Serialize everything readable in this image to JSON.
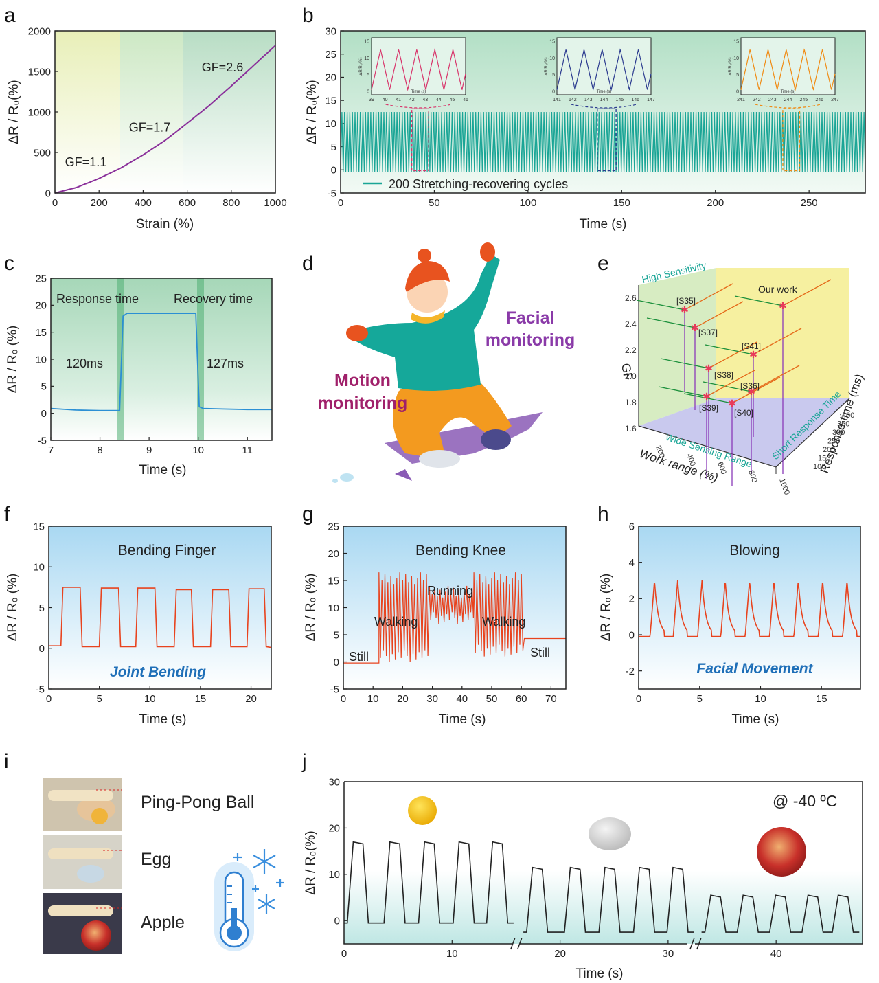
{
  "panel_labels": [
    "a",
    "b",
    "c",
    "d",
    "e",
    "f",
    "g",
    "h",
    "i",
    "j"
  ],
  "colors": {
    "purple": "#8a2f9a",
    "teal": "#1aa596",
    "blue": "#2b8fd4",
    "red": "#e8431e",
    "black": "#222222",
    "pink": "#d8336a",
    "navy": "#2b3a8f",
    "orange": "#f08a12"
  },
  "panel_a": {
    "ylabel": "ΔR / R₀(%)",
    "xlabel": "Strain (%)",
    "annotations": [
      "GF=1.1",
      "GF=1.7",
      "GF=2.6"
    ]
  },
  "panel_b": {
    "ylabel": "ΔR / R₀(%)",
    "xlabel": "Time (s)",
    "legend": "200 Stretching-recovering cycles"
  },
  "panel_c": {
    "ylabel": "ΔR / R₀ (%)",
    "xlabel": "Time (s)",
    "annotations": [
      "Response time",
      "Recovery time",
      "120ms",
      "127ms"
    ]
  },
  "panel_d": {
    "labels": [
      "Facial",
      "monitoring",
      "Motion",
      "monitoring"
    ]
  },
  "panel_e": {
    "zlabel": "GF",
    "xlabel": "Work range (%)",
    "ylabel": "Response time (ms)",
    "arrows": [
      "High Sensitivity",
      "Wide Sensing Range",
      "Short Response Time"
    ],
    "points": [
      "Our work",
      "[S35]",
      "[S37]",
      "[S41]",
      "[S38]",
      "[S36]",
      "[S39]",
      "[S40]"
    ],
    "z_ticks": [
      "2.6",
      "2.4",
      "2.2",
      "2.0",
      "1.8",
      "1.6"
    ],
    "x_ticks": [
      "200",
      "400",
      "600",
      "800",
      "1000"
    ],
    "y_ticks": [
      "400",
      "350",
      "300",
      "250",
      "200",
      "150",
      "100"
    ]
  },
  "panel_f": {
    "ylabel": "ΔR / R₀ (%)",
    "xlabel": "Time (s)",
    "title": "Bending Finger",
    "subtitle": "Joint Bending"
  },
  "panel_g": {
    "ylabel": "ΔR / R₀ (%)",
    "xlabel": "Time (s)",
    "title": "Bending Knee",
    "annotations": [
      "Still",
      "Walking",
      "Running",
      "Walking",
      "Still"
    ]
  },
  "panel_h": {
    "ylabel": "ΔR / R₀ (%)",
    "xlabel": "Time (s)",
    "title": "Blowing",
    "subtitle": "Facial Movement"
  },
  "panel_i": {
    "labels": [
      "Ping-Pong Ball",
      "Egg",
      "Apple"
    ]
  },
  "panel_j": {
    "ylabel": "ΔR / R₀(%)",
    "xlabel": "Time (s)",
    "condition": "@ -40 ºC"
  },
  "chart_data": [
    {
      "id": "a",
      "type": "line",
      "xlabel": "Strain (%)",
      "ylabel": "ΔR / R₀(%)",
      "xlim": [
        0,
        1000
      ],
      "ylim": [
        0,
        2000
      ],
      "xticks": [
        0,
        200,
        400,
        600,
        800,
        1000
      ],
      "yticks": [
        0,
        500,
        1000,
        1500,
        2000
      ],
      "regions": [
        [
          0,
          300
        ],
        [
          300,
          590
        ],
        [
          590,
          1000
        ]
      ],
      "x": [
        0,
        100,
        200,
        300,
        400,
        500,
        590,
        700,
        800,
        900,
        1000
      ],
      "y": [
        0,
        70,
        180,
        310,
        470,
        650,
        840,
        1080,
        1320,
        1570,
        1820
      ],
      "annotations": [
        {
          "text": "GF=1.1",
          "x": 140,
          "y": 330
        },
        {
          "text": "GF=1.7",
          "x": 430,
          "y": 760
        },
        {
          "text": "GF=2.6",
          "x": 760,
          "y": 1500
        }
      ]
    },
    {
      "id": "b",
      "type": "line",
      "xlabel": "Time (s)",
      "ylabel": "ΔR / R₀(%)",
      "xlim": [
        0,
        280
      ],
      "ylim": [
        -5,
        30
      ],
      "xticks": [
        0,
        50,
        100,
        150,
        200,
        250
      ],
      "yticks": [
        -5,
        0,
        5,
        10,
        15,
        20,
        25,
        30
      ],
      "series": [
        {
          "name": "200 Stretching-recovering cycles",
          "period_s": 1.4,
          "min": -0.5,
          "max": 12.5
        }
      ],
      "insets": [
        {
          "xlim": [
            39,
            46
          ],
          "xticks": [
            39,
            40,
            41,
            42,
            43,
            44,
            45,
            46
          ],
          "ylim": [
            0,
            15
          ],
          "yticks": [
            0,
            5,
            10,
            15
          ],
          "cycles": 5,
          "color": "pink",
          "xlabel": "Time (s)",
          "ylabel": "ΔR/R₀(%)",
          "zoom_x": [
            38,
            47
          ]
        },
        {
          "xlim": [
            141,
            147
          ],
          "xticks": [
            141,
            142,
            143,
            144,
            145,
            146,
            147
          ],
          "ylim": [
            0,
            15
          ],
          "yticks": [
            0,
            5,
            10,
            15
          ],
          "cycles": 5,
          "color": "navy",
          "xlabel": "Time (s)",
          "ylabel": "ΔR/R₀(%)",
          "zoom_x": [
            137,
            147
          ]
        },
        {
          "xlim": [
            241,
            247
          ],
          "xticks": [
            241,
            242,
            243,
            244,
            245,
            246,
            247
          ],
          "ylim": [
            0,
            15
          ],
          "yticks": [
            0,
            5,
            10,
            15
          ],
          "cycles": 5,
          "color": "orange",
          "xlabel": "Time (s)",
          "ylabel": "ΔR/R₀(%)",
          "zoom_x": [
            236,
            245
          ]
        }
      ]
    },
    {
      "id": "c",
      "type": "line",
      "xlabel": "Time (s)",
      "ylabel": "ΔR / R₀ (%)",
      "xlim": [
        7,
        11.5
      ],
      "ylim": [
        -5,
        25
      ],
      "xticks": [
        7,
        8,
        9,
        10,
        11
      ],
      "yticks": [
        -5,
        0,
        5,
        10,
        15,
        20,
        25
      ],
      "x": [
        7,
        7.5,
        8.0,
        8.4,
        8.47,
        8.55,
        9.0,
        9.5,
        9.95,
        10.02,
        10.1,
        10.5,
        11.0,
        11.5
      ],
      "y": [
        0.9,
        0.6,
        0.5,
        0.5,
        18.0,
        18.5,
        18.5,
        18.5,
        18.5,
        1.2,
        0.9,
        0.8,
        0.7,
        0.7
      ]
    },
    {
      "id": "e",
      "type": "scatter",
      "xlabel": "Work range (%)",
      "ylabel": "Response time (ms)",
      "zlabel": "GF",
      "points": [
        {
          "label": "Our work",
          "gf": 2.55
        },
        {
          "label": "[S35]",
          "gf": 2.52
        },
        {
          "label": "[S37]",
          "gf": 2.4
        },
        {
          "label": "[S41]",
          "gf": 2.18
        },
        {
          "label": "[S38]",
          "gf": 2.1
        },
        {
          "label": "[S36]",
          "gf": 1.94
        },
        {
          "label": "[S39]",
          "gf": 1.88
        },
        {
          "label": "[S40]",
          "gf": 1.83
        }
      ]
    },
    {
      "id": "f",
      "type": "line",
      "xlabel": "Time (s)",
      "ylabel": "ΔR / R₀ (%)",
      "xlim": [
        0,
        22
      ],
      "ylim": [
        -5,
        15
      ],
      "xticks": [
        0,
        5,
        10,
        15,
        20
      ],
      "yticks": [
        -5,
        0,
        5,
        10,
        15
      ],
      "x": [
        0,
        1.2,
        1.4,
        3.1,
        3.3,
        5.0,
        5.2,
        6.9,
        7.1,
        8.6,
        8.8,
        10.5,
        10.7,
        12.4,
        12.6,
        14.1,
        14.3,
        16.0,
        16.2,
        17.8,
        18.0,
        19.6,
        19.8,
        21.3,
        21.5,
        22
      ],
      "y": [
        0.3,
        0.3,
        7.5,
        7.5,
        0.2,
        0.2,
        7.4,
        7.4,
        0.2,
        0.2,
        7.4,
        7.4,
        0.2,
        0.2,
        7.2,
        7.2,
        0.2,
        0.2,
        7.2,
        7.2,
        0.2,
        0.2,
        7.3,
        7.3,
        0.2,
        0.1
      ]
    },
    {
      "id": "g",
      "type": "line",
      "xlabel": "Time (s)",
      "ylabel": "ΔR / R₀ (%)",
      "xlim": [
        0,
        75
      ],
      "ylim": [
        -5,
        25
      ],
      "xticks": [
        0,
        10,
        20,
        30,
        40,
        50,
        60,
        70
      ],
      "yticks": [
        -5,
        0,
        5,
        10,
        15,
        20,
        25
      ],
      "segments": [
        {
          "phase": "Still",
          "from": 0,
          "to": 12,
          "level": -0.2
        },
        {
          "phase": "Walking",
          "from": 12,
          "to": 29,
          "min": 0,
          "max": 16.5
        },
        {
          "phase": "Running",
          "from": 29,
          "to": 44,
          "min": 7,
          "max": 14
        },
        {
          "phase": "Walking",
          "from": 44,
          "to": 61,
          "min": 1,
          "max": 16.5
        },
        {
          "phase": "Still",
          "from": 61,
          "to": 75,
          "level": 4.3
        }
      ]
    },
    {
      "id": "h",
      "type": "line",
      "xlabel": "Time (s)",
      "ylabel": "ΔR / R₀ (%)",
      "xlim": [
        0,
        18.2
      ],
      "ylim": [
        -3,
        6
      ],
      "xticks": [
        0,
        5,
        10,
        15
      ],
      "yticks": [
        -2,
        0,
        2,
        4,
        6
      ],
      "peaks_x": [
        1.3,
        3.2,
        5.2,
        7.1,
        9.1,
        11.1,
        13.1,
        15.1,
        17.1
      ],
      "peak": 3.0,
      "baseline": 0.0
    },
    {
      "id": "j",
      "type": "line",
      "xlabel": "Time (s)",
      "ylabel": "ΔR / R₀(%)",
      "xlim": [
        0,
        48
      ],
      "ylim": [
        -5,
        30
      ],
      "xticks": [
        0,
        10,
        20,
        30,
        40
      ],
      "yticks": [
        0,
        10,
        20,
        30
      ],
      "series": [
        {
          "name": "Ping-Pong Ball",
          "peak": 17,
          "pulses_x": [
            1.4,
            4.8,
            8.0,
            11.2,
            14.3
          ],
          "low": -0.5
        },
        {
          "name": "Egg",
          "peak": 11.5,
          "pulses_x": [
            18.0,
            21.5,
            24.7,
            27.9,
            31.0
          ],
          "low": -2.5
        },
        {
          "name": "Apple",
          "peak": 5.5,
          "pulses_x": [
            34.5,
            37.5,
            40.5,
            43.5,
            46.3
          ],
          "low": -2.5
        }
      ],
      "breaks_x": [
        16.0,
        32.6
      ]
    }
  ]
}
